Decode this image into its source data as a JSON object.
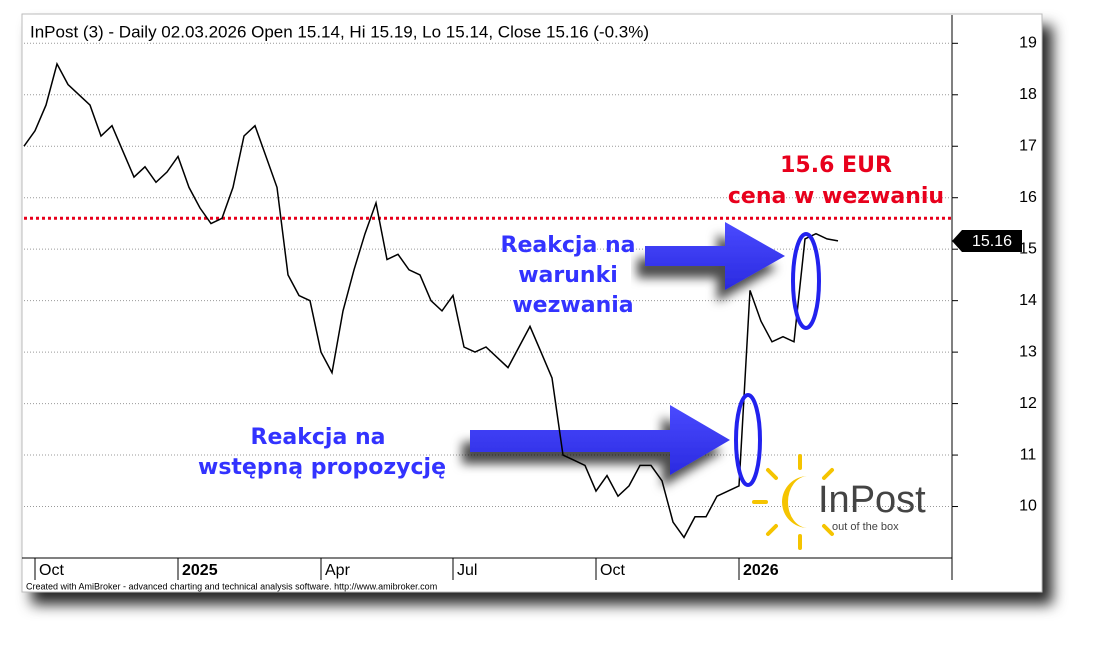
{
  "chart_data": {
    "type": "line",
    "title": "InPost (3) - Daily 02.03.2026 Open 15.14, Hi 15.19, Lo 15.14, Close 15.16 (-0.3%)",
    "footer": "Created with AmiBroker - advanced charting and technical analysis software. http://www.amibroker.com",
    "categories": [
      null,
      "Oct",
      null,
      null,
      null,
      null,
      null,
      null,
      null,
      null,
      null,
      null,
      null,
      null,
      "2025",
      null,
      null,
      null,
      null,
      null,
      null,
      null,
      null,
      null,
      null,
      null,
      null,
      "Apr",
      null,
      null,
      null,
      null,
      null,
      null,
      null,
      null,
      null,
      null,
      null,
      "Jul",
      null,
      null,
      null,
      null,
      null,
      null,
      null,
      null,
      null,
      null,
      null,
      null,
      "Oct",
      null,
      null,
      null,
      null,
      null,
      null,
      null,
      null,
      null,
      null,
      null,
      null,
      "2026",
      null,
      null,
      null,
      null,
      null,
      null,
      null,
      null,
      null,
      null,
      null,
      null,
      null,
      null,
      null,
      null,
      null,
      null,
      null
    ],
    "values": [
      17.0,
      17.3,
      17.8,
      18.6,
      18.2,
      18.0,
      17.8,
      17.2,
      17.4,
      16.9,
      16.4,
      16.6,
      16.3,
      16.5,
      16.8,
      16.2,
      15.8,
      15.5,
      15.6,
      16.2,
      17.2,
      17.4,
      16.8,
      16.2,
      14.5,
      14.1,
      14.0,
      13.0,
      12.6,
      13.8,
      14.6,
      15.3,
      15.9,
      14.8,
      14.9,
      14.6,
      14.5,
      14.0,
      13.8,
      14.1,
      13.1,
      13.0,
      13.1,
      12.9,
      12.7,
      13.1,
      13.5,
      13.0,
      12.5,
      11.0,
      10.9,
      10.8,
      10.3,
      10.6,
      10.2,
      10.4,
      10.8,
      10.8,
      10.5,
      9.7,
      9.4,
      9.8,
      9.8,
      10.2,
      10.3,
      10.4,
      14.2,
      13.6,
      13.2,
      13.3,
      13.2,
      15.2,
      15.3,
      15.2,
      15.16,
      null,
      null,
      null,
      null,
      null,
      null,
      null,
      null,
      null,
      null
    ],
    "color": "#000000",
    "ylim": [
      9.0,
      19.55
    ],
    "yticks": [
      10,
      11,
      12,
      13,
      14,
      15,
      16,
      17,
      18,
      19
    ],
    "grid": true,
    "ref_line": {
      "value": 15.6,
      "color": "#e8001c"
    },
    "annotations": {
      "offer_price": [
        "15.6 EUR",
        "cena w wezwaniu"
      ],
      "reaction_terms": [
        "Reakcja na",
        "warunki",
        "wezwania"
      ],
      "reaction_initial": [
        "Reakcja na",
        "wstępną propozycję"
      ]
    },
    "logo": {
      "name": "InPost",
      "tagline": "out of the box"
    }
  }
}
